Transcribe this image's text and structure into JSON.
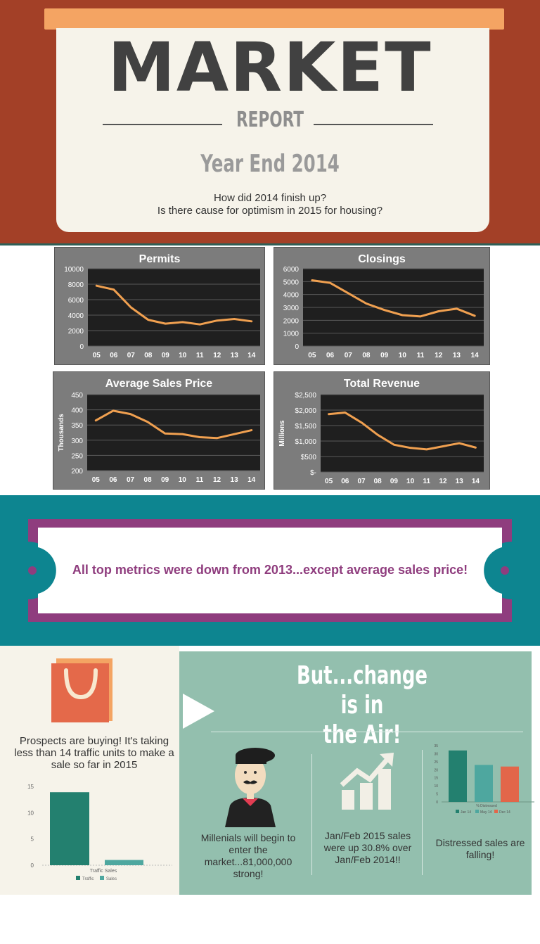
{
  "header": {
    "title": "MARKET",
    "subtitle": "REPORT",
    "year": "Year End 2014",
    "question_1": "How did 2014 finish up?",
    "question_2": "Is there cause for optimism in 2015 for housing?"
  },
  "callout": "All top metrics were down from 2013...except average sales price!",
  "prospects": "Prospects are buying! It's taking less than 14 traffic units to make a sale so far in 2015",
  "change": {
    "title_line1": "But...change is in",
    "title_line2": "the Air!",
    "millenials": "Millenials will begin to enter the market...81,000,000 strong!",
    "sales": "Jan/Feb 2015 sales were up 30.8% over Jan/Feb 2014!!",
    "distressed": "Distressed sales are falling!"
  },
  "colors": {
    "header_bg": "#a34027",
    "tab": "#f4a463",
    "card": "#f6f3ea",
    "teal_band": "#0d8590",
    "plum": "#8f3d7e",
    "sage": "#93bfae",
    "line": "#f0a050"
  },
  "icons": [
    "shopping-bag-icon",
    "play-arrow-icon",
    "person-beret-icon",
    "growth-chart-icon"
  ],
  "chart_data": [
    {
      "type": "line",
      "title": "Permits",
      "categories": [
        "05",
        "06",
        "07",
        "08",
        "09",
        "10",
        "11",
        "12",
        "13",
        "14"
      ],
      "values": [
        7800,
        7300,
        5000,
        3400,
        2900,
        3100,
        2800,
        3300,
        3500,
        3200
      ],
      "ylim": [
        0,
        10000
      ],
      "yticks": [
        0,
        2000,
        4000,
        6000,
        8000,
        10000
      ],
      "ytick_labels": [
        "0",
        "2000",
        "4000",
        "6000",
        "8000",
        "10000"
      ],
      "ylabel": ""
    },
    {
      "type": "line",
      "title": "Closings",
      "categories": [
        "05",
        "06",
        "07",
        "08",
        "09",
        "10",
        "11",
        "12",
        "13",
        "14"
      ],
      "values": [
        5100,
        4900,
        4100,
        3300,
        2800,
        2400,
        2300,
        2700,
        2900,
        2350
      ],
      "ylim": [
        0,
        6000
      ],
      "yticks": [
        0,
        1000,
        2000,
        3000,
        4000,
        5000,
        6000
      ],
      "ytick_labels": [
        "0",
        "1000",
        "2000",
        "3000",
        "4000",
        "5000",
        "6000"
      ],
      "ylabel": ""
    },
    {
      "type": "line",
      "title": "Average Sales Price",
      "categories": [
        "05",
        "06",
        "07",
        "08",
        "09",
        "10",
        "11",
        "12",
        "13",
        "14"
      ],
      "values": [
        365,
        397,
        386,
        360,
        322,
        320,
        310,
        307,
        320,
        333
      ],
      "ylim": [
        200,
        450
      ],
      "yticks": [
        200,
        250,
        300,
        350,
        400,
        450
      ],
      "ytick_labels": [
        "200",
        "250",
        "300",
        "350",
        "400",
        "450"
      ],
      "ylabel": "Thousands"
    },
    {
      "type": "line",
      "title": "Total Revenue",
      "categories": [
        "05",
        "06",
        "07",
        "08",
        "09",
        "10",
        "11",
        "12",
        "13",
        "14"
      ],
      "values": [
        1870,
        1920,
        1600,
        1200,
        880,
        780,
        730,
        830,
        930,
        790
      ],
      "ylim": [
        0,
        2500
      ],
      "yticks": [
        0,
        500,
        1000,
        1500,
        2000,
        2500
      ],
      "ytick_labels": [
        "$-",
        "$500",
        "$1,000",
        "$1,500",
        "$2,000",
        "$2,500"
      ],
      "ylabel": "Millions"
    },
    {
      "type": "bar",
      "title": "",
      "categories": [
        "Traffic Sales"
      ],
      "series": [
        {
          "name": "Traffic",
          "values": [
            13.9
          ],
          "color": "#23806f"
        },
        {
          "name": "Sales",
          "values": [
            1
          ],
          "color": "#4ea79f"
        }
      ],
      "ylim": [
        0,
        15
      ],
      "yticks": [
        0,
        5,
        10,
        15
      ],
      "ytick_labels": [
        "0",
        "5",
        "10",
        "15"
      ]
    },
    {
      "type": "bar",
      "title": "",
      "categories": [
        "% Distressed"
      ],
      "series": [
        {
          "name": "Jan 14",
          "values": [
            32
          ],
          "color": "#23806f"
        },
        {
          "name": "May 14",
          "values": [
            23
          ],
          "color": "#4ea79f"
        },
        {
          "name": "Dec 14",
          "values": [
            22
          ],
          "color": "#e2664a"
        }
      ],
      "ylim": [
        0,
        35
      ],
      "yticks": [
        0,
        5,
        10,
        15,
        20,
        25,
        30,
        35
      ],
      "ytick_labels": [
        "0",
        "5",
        "10",
        "15",
        "20",
        "25",
        "30",
        "35"
      ]
    }
  ]
}
